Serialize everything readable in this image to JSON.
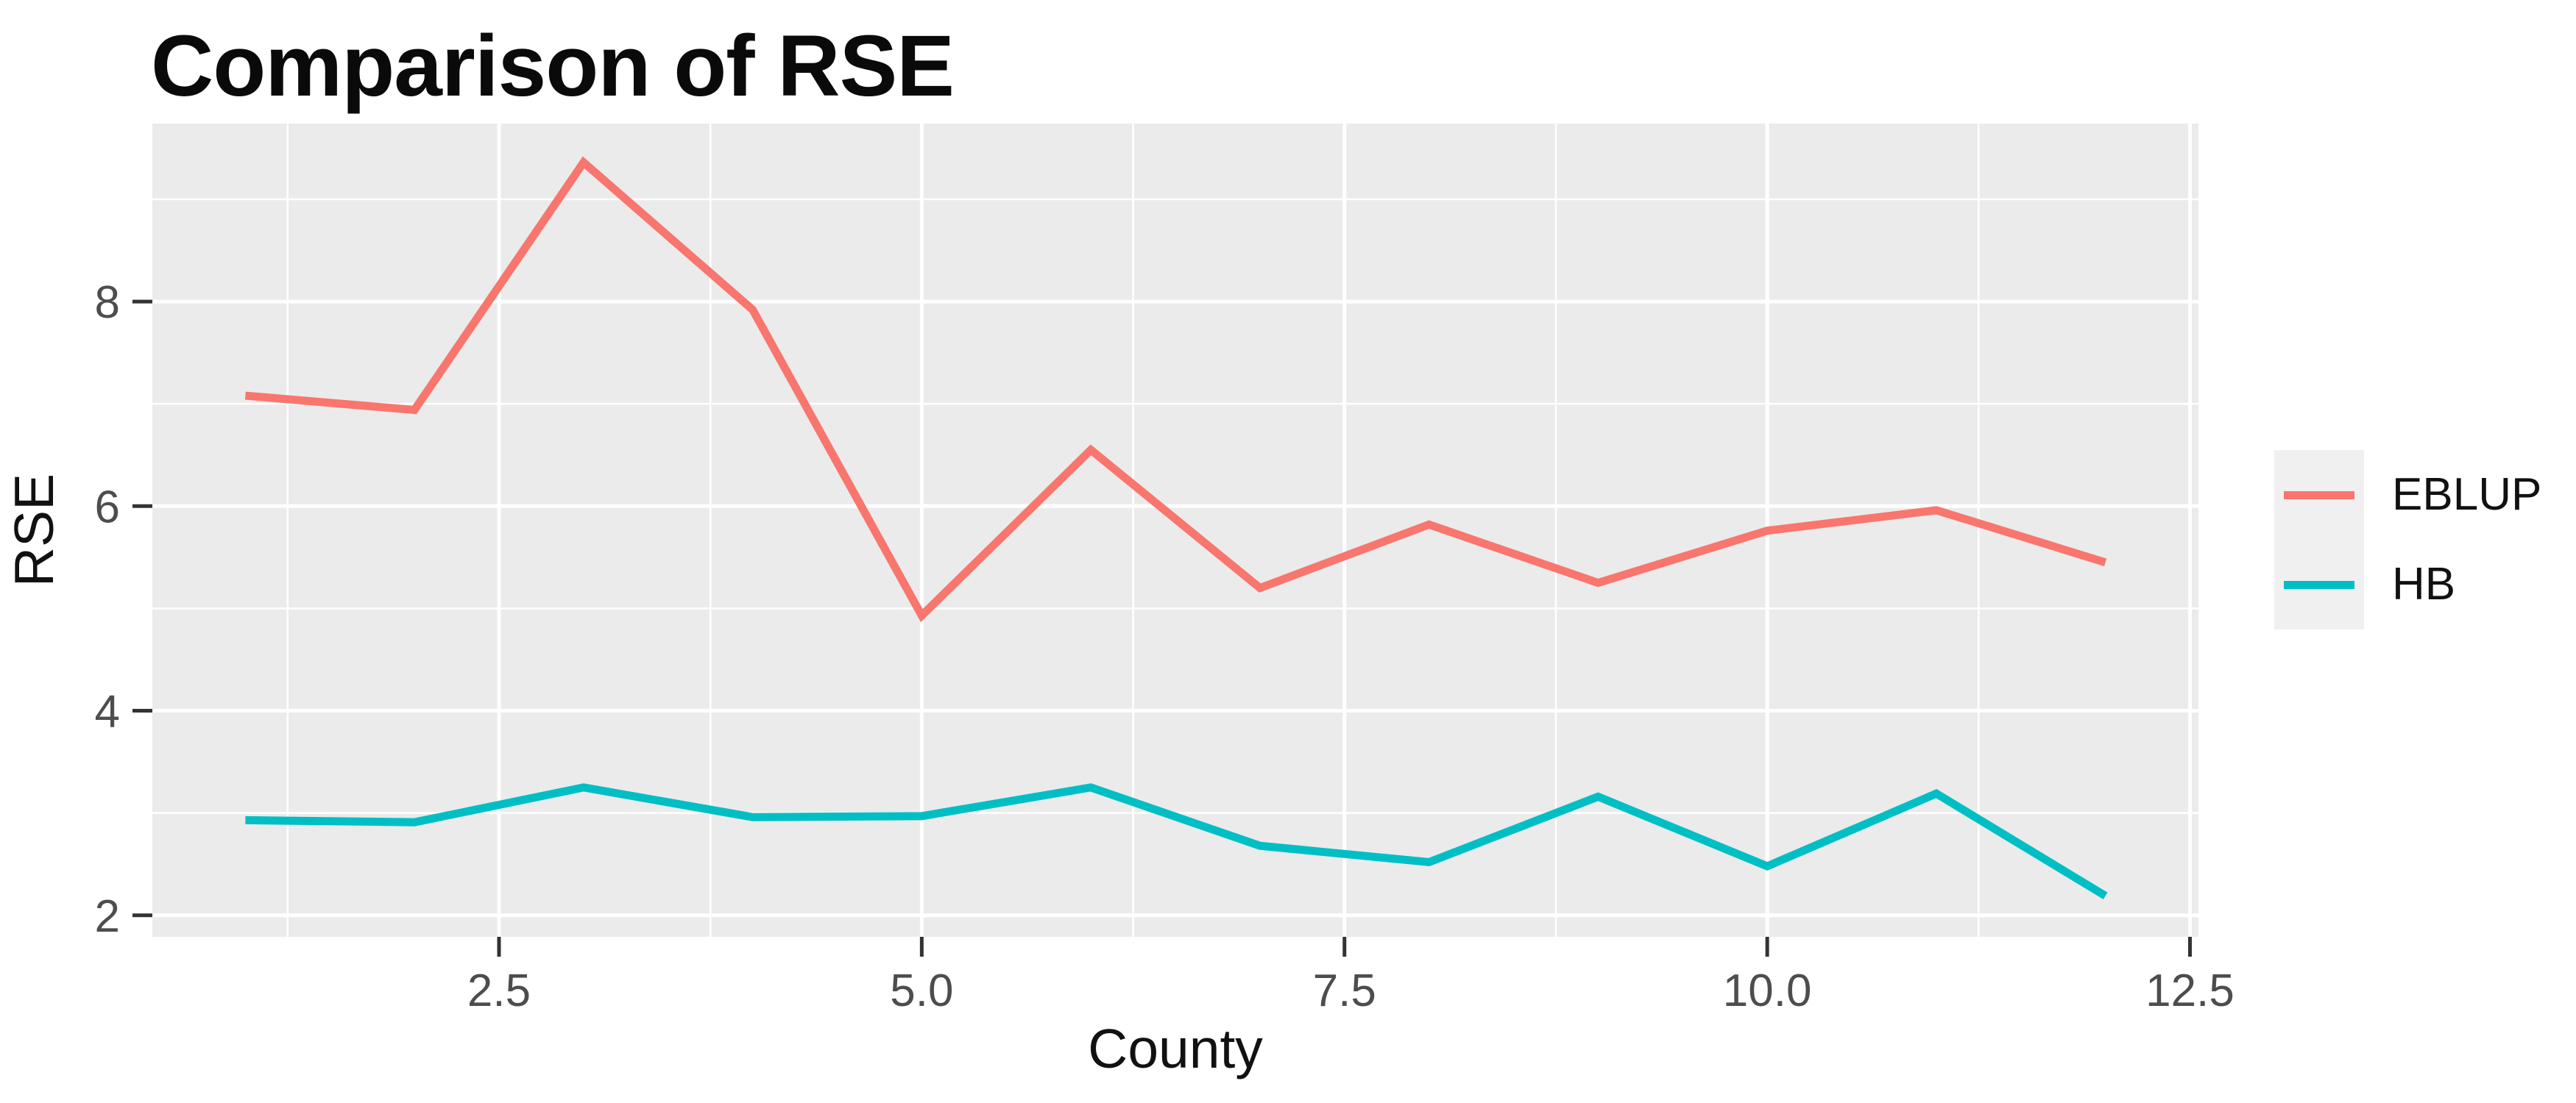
{
  "page": {
    "title": "Comparison of RSE"
  },
  "chart_data": {
    "type": "line",
    "title": "Comparison of RSE",
    "xlabel": "County",
    "ylabel": "RSE",
    "x": [
      1,
      2,
      3,
      4,
      5,
      6,
      7,
      8,
      9,
      10,
      11,
      12
    ],
    "series": [
      {
        "name": "EBLUP",
        "color": "#F8766D",
        "values": [
          7.08,
          6.94,
          9.36,
          7.92,
          4.93,
          6.55,
          5.2,
          5.82,
          5.25,
          5.76,
          5.96,
          5.45
        ]
      },
      {
        "name": "HB",
        "color": "#00BFC4",
        "values": [
          2.93,
          2.91,
          3.25,
          2.96,
          2.97,
          3.25,
          2.68,
          2.52,
          3.16,
          2.48,
          3.19,
          2.19
        ]
      }
    ],
    "x_ticks": {
      "values": [
        2.5,
        5,
        7.5,
        10,
        12.5
      ],
      "labels": [
        "2.5",
        "5.0",
        "7.5",
        "10.0",
        "12.5"
      ],
      "minor": [
        1.25,
        3.75,
        6.25,
        8.75,
        11.25
      ]
    },
    "y_ticks": {
      "values": [
        2,
        4,
        6,
        8
      ],
      "labels": [
        "2",
        "4",
        "6",
        "8"
      ],
      "minor": [
        3,
        5,
        7,
        9
      ]
    },
    "xlim": [
      0.45,
      12.55
    ],
    "ylim": [
      1.79,
      9.74
    ],
    "grid": "on",
    "legend_position": "right",
    "panel_bg": "#EBEBEB",
    "grid_color": "#FFFFFF",
    "tick_color": "#333333",
    "tick_label_color": "#4D4D4D",
    "axis_title_color": "#111111",
    "line_width": 11
  },
  "legend": {
    "key_bg": "#F0F0F0",
    "items": [
      {
        "label": "EBLUP",
        "color": "#F8766D"
      },
      {
        "label": "HB",
        "color": "#00BFC4"
      }
    ]
  }
}
